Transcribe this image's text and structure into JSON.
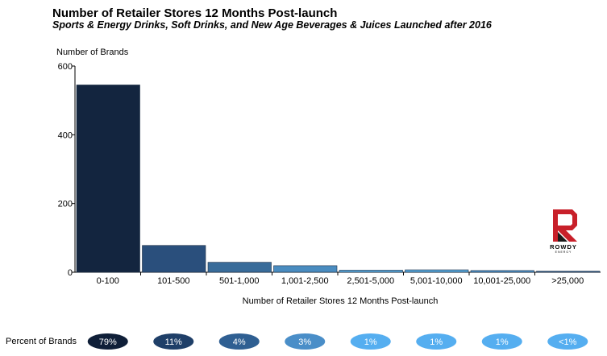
{
  "title": "Number of Retailer Stores 12 Months Post-launch",
  "subtitle": "Sports & Energy Drinks, Soft Drinks, and New Age Beverages & Juices Launched after 2016",
  "percent_row_label": "Percent of Brands",
  "logo": {
    "word": "ROWDY",
    "sub": "ENERGY",
    "brand_colors": [
      "#c8202a",
      "#1a1a1a"
    ]
  },
  "chart_data": {
    "type": "bar",
    "title": "Number of Retailer Stores 12 Months Post-launch",
    "subtitle": "Sports & Energy Drinks, Soft Drinks, and New Age Beverages & Juices Launched after 2016",
    "xlabel": "Number of Retailer Stores 12 Months Post-launch",
    "ylabel": "Number of Brands",
    "ylim": [
      0,
      600
    ],
    "yticks": [
      0,
      200,
      400,
      600
    ],
    "categories": [
      "0-100",
      "101-500",
      "501-1,000",
      "1,001-2,500",
      "2,501-5,000",
      "5,001-10,000",
      "10,001-25,000",
      ">25,000"
    ],
    "values": [
      545,
      78,
      29,
      19,
      6,
      7,
      5,
      3
    ],
    "percent_of_brands": [
      "79%",
      "11%",
      "4%",
      "3%",
      "1%",
      "1%",
      "1%",
      "<1%"
    ],
    "colors": [
      "#13253f",
      "#2a4f7c",
      "#396c9a",
      "#4a8cc0",
      "#57a5d8",
      "#57a5d8",
      "#4f92c8",
      "#2f5f8e"
    ],
    "pill_colors": [
      "#0f1f38",
      "#1f3f68",
      "#2f5f92",
      "#4a8ec8",
      "#55aef0",
      "#55aef0",
      "#55aef0",
      "#55aef0"
    ],
    "grid": false,
    "legend": "none"
  }
}
